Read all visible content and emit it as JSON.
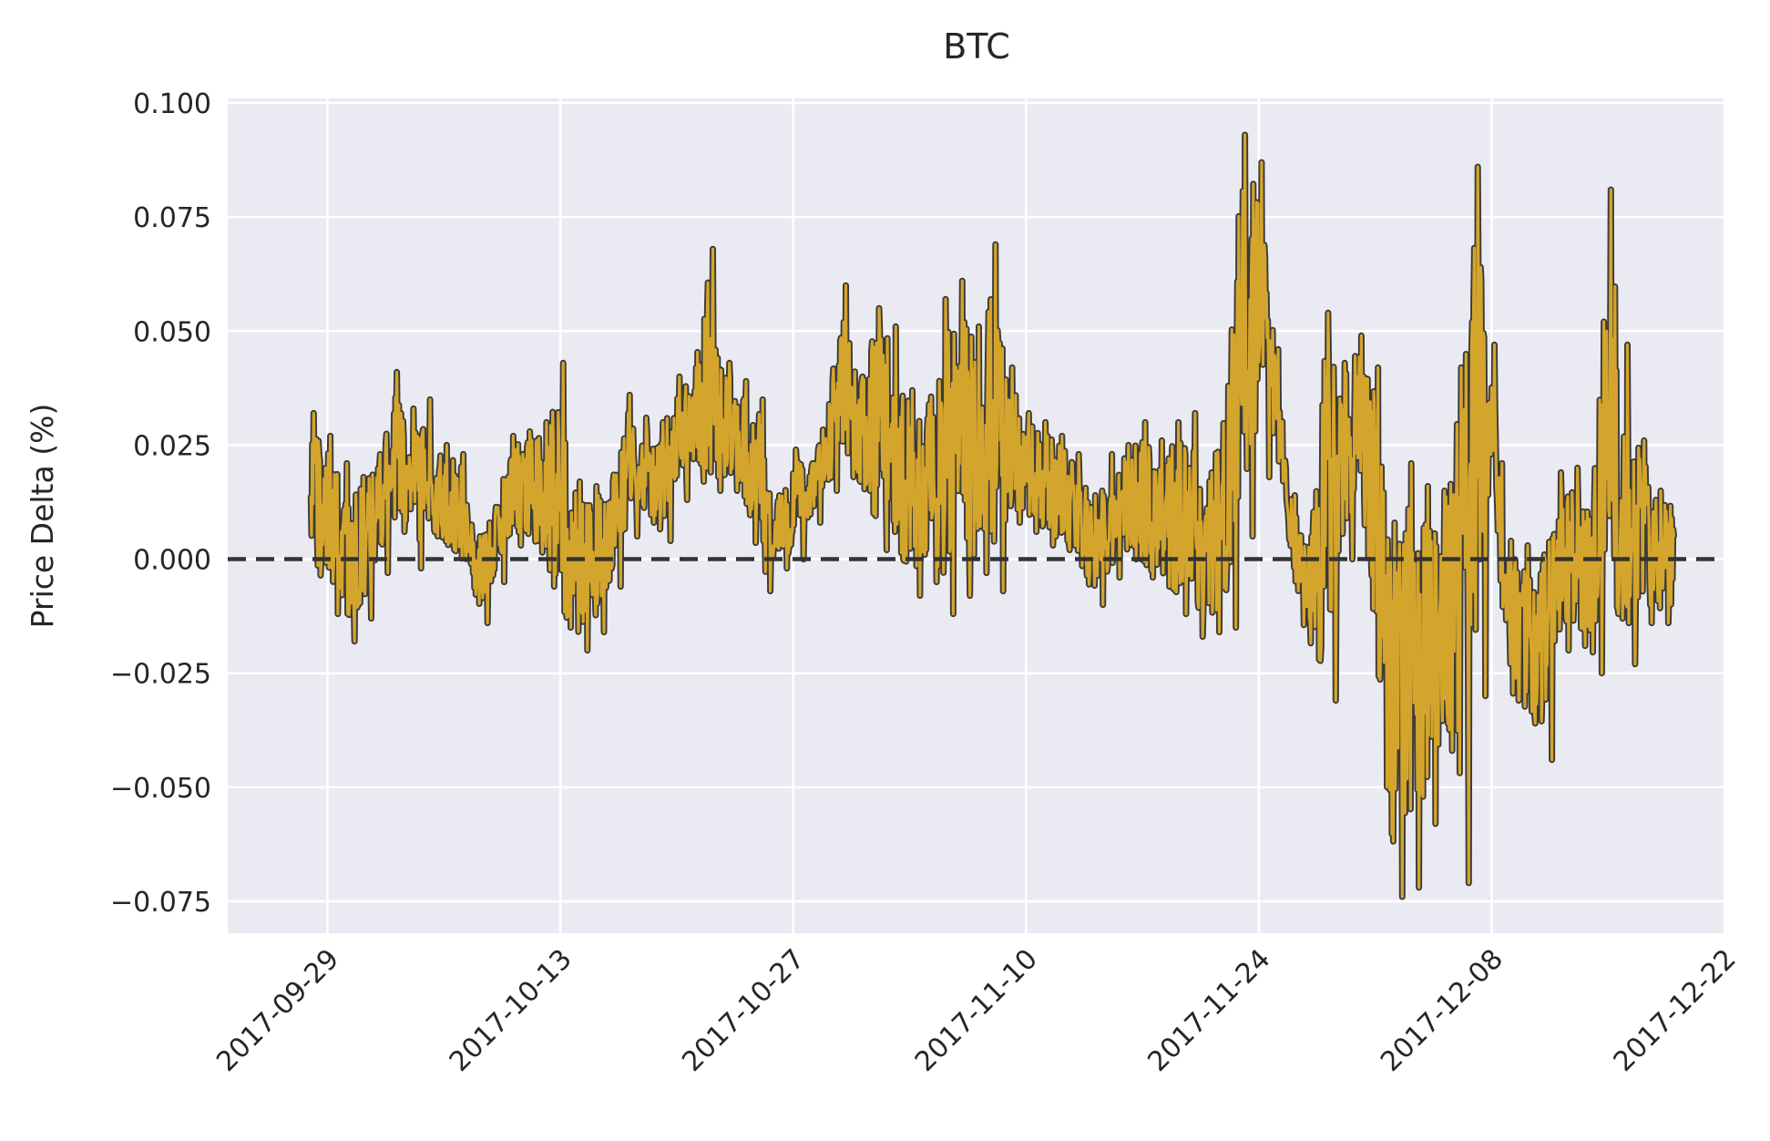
{
  "chart_data": {
    "type": "line",
    "title": "BTC",
    "xlabel": "",
    "ylabel": "Price Delta (%)",
    "ylim": [
      -0.082,
      0.101
    ],
    "xlim": [
      "2017-09-23",
      "2017-12-22"
    ],
    "grid": true,
    "x_ticks": [
      "2017-09-29",
      "2017-10-13",
      "2017-10-27",
      "2017-11-10",
      "2017-11-24",
      "2017-12-08",
      "2017-12-22"
    ],
    "y_ticks": [
      0.1,
      0.075,
      0.05,
      0.025,
      0.0,
      -0.025,
      -0.05,
      -0.075
    ],
    "y_tick_labels": [
      "0.100",
      "0.075",
      "0.050",
      "0.025",
      "0.000",
      "−0.025",
      "−0.050",
      "−0.075"
    ],
    "reference_line": {
      "y": 0.0,
      "style": "dashed",
      "color": "#333333"
    },
    "colors": {
      "line": "#d4a52c",
      "edge": "#3a3a3a",
      "background": "#eaeaf2",
      "grid": "#ffffff"
    },
    "series": [
      {
        "x": [
          "2017-09-28",
          "2017-09-29",
          "2017-09-30",
          "2017-10-01",
          "2017-10-02",
          "2017-10-03",
          "2017-10-04",
          "2017-10-05",
          "2017-10-06",
          "2017-10-07",
          "2017-10-08",
          "2017-10-09",
          "2017-10-10",
          "2017-10-11",
          "2017-10-12",
          "2017-10-13",
          "2017-10-14",
          "2017-10-15",
          "2017-10-16",
          "2017-10-17",
          "2017-10-18",
          "2017-10-19",
          "2017-10-20",
          "2017-10-21",
          "2017-10-22",
          "2017-10-23",
          "2017-10-24",
          "2017-10-25",
          "2017-10-26",
          "2017-10-27",
          "2017-10-28",
          "2017-10-29",
          "2017-10-30",
          "2017-10-31",
          "2017-11-01",
          "2017-11-02",
          "2017-11-03",
          "2017-11-04",
          "2017-11-05",
          "2017-11-06",
          "2017-11-07",
          "2017-11-08",
          "2017-11-09",
          "2017-11-10",
          "2017-11-11",
          "2017-11-12",
          "2017-11-13",
          "2017-11-14",
          "2017-11-15",
          "2017-11-16",
          "2017-11-17",
          "2017-11-18",
          "2017-11-19",
          "2017-11-20",
          "2017-11-21",
          "2017-11-22",
          "2017-11-23",
          "2017-11-24",
          "2017-11-25",
          "2017-11-26",
          "2017-11-27",
          "2017-11-28",
          "2017-11-29",
          "2017-11-30",
          "2017-12-01",
          "2017-12-02",
          "2017-12-03",
          "2017-12-04",
          "2017-12-05",
          "2017-12-06",
          "2017-12-07",
          "2017-12-08",
          "2017-12-09",
          "2017-12-10",
          "2017-12-11",
          "2017-12-12",
          "2017-12-13",
          "2017-12-14",
          "2017-12-15",
          "2017-12-16",
          "2017-12-17",
          "2017-12-18"
        ],
        "high": [
          0.032,
          0.027,
          0.021,
          0.018,
          0.023,
          0.041,
          0.033,
          0.035,
          0.025,
          0.023,
          0.005,
          0.011,
          0.027,
          0.028,
          0.03,
          0.043,
          0.017,
          0.016,
          0.017,
          0.036,
          0.031,
          0.03,
          0.04,
          0.042,
          0.068,
          0.043,
          0.039,
          0.035,
          0.014,
          0.024,
          0.021,
          0.034,
          0.06,
          0.04,
          0.055,
          0.051,
          0.037,
          0.034,
          0.057,
          0.061,
          0.051,
          0.069,
          0.042,
          0.032,
          0.03,
          0.027,
          0.023,
          0.014,
          0.023,
          0.025,
          0.03,
          0.026,
          0.03,
          0.032,
          0.019,
          0.038,
          0.093,
          0.087,
          0.046,
          0.014,
          0.005,
          0.054,
          0.043,
          0.049,
          0.042,
          0.008,
          0.021,
          0.016,
          0.015,
          0.042,
          0.086,
          0.047,
          0.004,
          0.003,
          0.001,
          0.019,
          0.02,
          0.012,
          0.081,
          0.047,
          0.026,
          0.015
        ],
        "low": [
          0.0,
          -0.012,
          -0.018,
          -0.013,
          -0.003,
          0.006,
          -0.002,
          0.005,
          0.002,
          -0.001,
          -0.014,
          -0.005,
          0.003,
          0.004,
          -0.006,
          -0.015,
          -0.02,
          -0.016,
          -0.006,
          0.005,
          0.008,
          0.004,
          0.013,
          0.017,
          0.015,
          0.015,
          0.013,
          -0.007,
          -0.002,
          0.0,
          0.008,
          0.015,
          0.018,
          0.015,
          0.002,
          0.0,
          -0.008,
          -0.005,
          -0.012,
          -0.008,
          -0.003,
          -0.007,
          0.008,
          0.006,
          0.003,
          0.002,
          0.0,
          -0.01,
          -0.004,
          0.0,
          -0.004,
          -0.006,
          -0.012,
          -0.017,
          -0.016,
          -0.015,
          0.005,
          0.018,
          0.02,
          -0.003,
          -0.022,
          -0.031,
          0.0,
          0.01,
          -0.022,
          -0.074,
          -0.072,
          -0.058,
          -0.042,
          -0.071,
          -0.03,
          0.021,
          -0.031,
          -0.036,
          -0.044,
          -0.02,
          -0.019,
          -0.025,
          -0.012,
          -0.023,
          -0.014,
          -0.014
        ]
      }
    ]
  }
}
